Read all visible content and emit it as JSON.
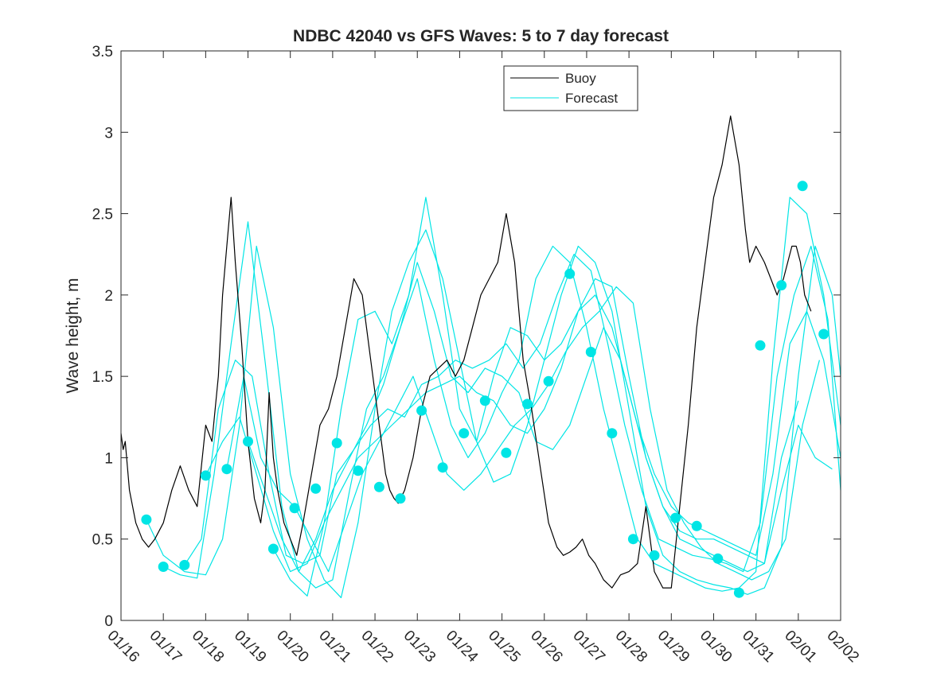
{
  "chart_data": {
    "type": "line",
    "title": "NDBC 42040 vs GFS Waves: 5 to 7 day forecast",
    "xlabel": "",
    "ylabel": "Wave height, m",
    "xlim": [
      0,
      17
    ],
    "ylim": [
      0,
      3.5
    ],
    "x_tick_values": [
      0,
      1,
      2,
      3,
      4,
      5,
      6,
      7,
      8,
      9,
      10,
      11,
      12,
      13,
      14,
      15,
      16,
      17
    ],
    "x_tick_labels": [
      "01/16",
      "01/17",
      "01/18",
      "01/19",
      "01/20",
      "01/21",
      "01/22",
      "01/23",
      "01/24",
      "01/25",
      "01/26",
      "01/27",
      "01/28",
      "01/29",
      "01/30",
      "01/31",
      "02/01",
      "02/02"
    ],
    "y_ticks": [
      0,
      0.5,
      1,
      1.5,
      2,
      2.5,
      3,
      3.5
    ],
    "y_tick_labels": [
      "0",
      "0.5",
      "1",
      "1.5",
      "2",
      "2.5",
      "3",
      "3.5"
    ],
    "legend": {
      "position": "top-right",
      "entries": [
        "Buoy",
        "Forecast"
      ]
    },
    "colors": {
      "buoy": "#000000",
      "forecast": "#00e5e5",
      "axis": "#262626"
    },
    "series": [
      {
        "name": "Buoy",
        "x": [
          0,
          0.05,
          0.1,
          0.2,
          0.35,
          0.5,
          0.65,
          0.8,
          1.0,
          1.2,
          1.4,
          1.6,
          1.8,
          2.0,
          2.15,
          2.3,
          2.4,
          2.5,
          2.6,
          2.7,
          2.85,
          3.0,
          3.15,
          3.3,
          3.4,
          3.5,
          3.6,
          3.7,
          3.85,
          4.0,
          4.15,
          4.3,
          4.5,
          4.7,
          4.9,
          5.1,
          5.3,
          5.5,
          5.7,
          5.9,
          6.1,
          6.25,
          6.35,
          6.45,
          6.55,
          6.7,
          6.9,
          7.1,
          7.3,
          7.5,
          7.7,
          7.9,
          8.1,
          8.3,
          8.5,
          8.7,
          8.9,
          9.1,
          9.3,
          9.5,
          9.7,
          9.9,
          10.1,
          10.3,
          10.45,
          10.6,
          10.75,
          10.9,
          11.05,
          11.2,
          11.4,
          11.6,
          11.8,
          12.0,
          12.2,
          12.4,
          12.6,
          12.8,
          13.0,
          13.2,
          13.4,
          13.6,
          13.8,
          14.0,
          14.2,
          14.4,
          14.6,
          14.75,
          14.85,
          15.0,
          15.2,
          15.35,
          15.5,
          15.65,
          15.75,
          15.85,
          15.95,
          16.05,
          16.15,
          16.3
        ],
        "values": [
          1.15,
          1.05,
          1.1,
          0.8,
          0.6,
          0.5,
          0.45,
          0.5,
          0.6,
          0.8,
          0.95,
          0.8,
          0.7,
          1.2,
          1.1,
          1.5,
          2.0,
          2.3,
          2.6,
          2.2,
          1.7,
          1.1,
          0.75,
          0.6,
          0.8,
          1.4,
          1.0,
          0.8,
          0.6,
          0.5,
          0.4,
          0.6,
          0.9,
          1.2,
          1.3,
          1.5,
          1.8,
          2.1,
          2.0,
          1.6,
          1.2,
          0.9,
          0.8,
          0.75,
          0.72,
          0.8,
          1.0,
          1.3,
          1.5,
          1.55,
          1.6,
          1.5,
          1.6,
          1.8,
          2.0,
          2.1,
          2.2,
          2.5,
          2.2,
          1.6,
          1.3,
          0.95,
          0.6,
          0.45,
          0.4,
          0.42,
          0.45,
          0.5,
          0.4,
          0.35,
          0.25,
          0.2,
          0.28,
          0.3,
          0.35,
          0.7,
          0.3,
          0.2,
          0.2,
          0.7,
          1.2,
          1.8,
          2.2,
          2.6,
          2.8,
          3.1,
          2.8,
          2.4,
          2.2,
          2.3,
          2.2,
          2.1,
          2.0,
          2.1,
          2.2,
          2.3,
          2.3,
          2.2,
          2.0,
          1.9
        ],
        "color": "#000000"
      },
      {
        "name": "Forecast",
        "x": [
          0.6,
          1.0,
          1.5,
          2.0,
          2.5,
          3.0,
          3.6,
          4.1,
          4.6,
          5.1,
          5.6,
          6.1,
          6.6,
          7.1,
          7.6,
          8.1,
          8.6,
          9.1,
          9.6,
          10.1,
          10.6,
          11.1,
          11.6,
          12.1,
          12.6,
          13.1,
          13.6,
          14.1,
          14.6,
          15.1,
          15.6,
          16.1,
          16.6
        ],
        "values": [
          0.62,
          0.33,
          0.34,
          0.89,
          0.93,
          1.1,
          0.44,
          0.69,
          0.81,
          1.09,
          0.92,
          0.82,
          0.75,
          1.29,
          0.94,
          1.15,
          1.35,
          1.03,
          1.33,
          1.47,
          2.13,
          1.65,
          1.15,
          0.5,
          0.4,
          0.63,
          0.58,
          0.38,
          0.17,
          1.69,
          2.06,
          2.67,
          1.76
        ],
        "style": "markers",
        "color": "#00e5e5"
      },
      {
        "name": "Forecast",
        "x": [
          0.6,
          1.0,
          1.5,
          2.0,
          2.4,
          2.8,
          3.2,
          3.6,
          4.0,
          4.4,
          4.8,
          5.2,
          5.6,
          6.0,
          6.4,
          6.8,
          7.2,
          7.6,
          8.0,
          8.4,
          8.8,
          9.2,
          9.6,
          10.0,
          10.4,
          10.8,
          11.2,
          11.6,
          12.0,
          12.4,
          12.8,
          13.2,
          13.6,
          14.0,
          14.4,
          14.8,
          15.2,
          15.6,
          16.0,
          16.4,
          16.8,
          17.0
        ],
        "values": [
          0.62,
          0.4,
          0.3,
          0.28,
          0.5,
          1.2,
          2.3,
          1.8,
          0.9,
          0.5,
          0.25,
          0.14,
          0.6,
          1.3,
          1.9,
          2.2,
          2.4,
          2.1,
          1.6,
          1.1,
          0.85,
          0.9,
          1.2,
          1.6,
          2.0,
          2.3,
          2.2,
          1.9,
          1.3,
          0.7,
          0.4,
          0.3,
          0.25,
          0.22,
          0.2,
          0.16,
          0.2,
          0.45,
          1.5,
          2.3,
          2.0,
          1.5
        ],
        "style": "line",
        "color": "#00e5e5"
      },
      {
        "name": "Forecast",
        "x": [
          1.0,
          1.4,
          1.8,
          2.2,
          2.6,
          3.0,
          3.4,
          3.8,
          4.2,
          4.6,
          5.0,
          5.4,
          5.8,
          6.2,
          6.6,
          7.0,
          7.4,
          7.8,
          8.2,
          8.6,
          9.0,
          9.4,
          9.8,
          10.2,
          10.6,
          11.0,
          11.4,
          11.8,
          12.2,
          12.6,
          13.0,
          13.4,
          13.8,
          14.2,
          14.6,
          15.0,
          15.4,
          15.8,
          16.2,
          16.6,
          17.0
        ],
        "values": [
          0.33,
          0.28,
          0.26,
          0.9,
          1.7,
          2.45,
          1.6,
          0.7,
          0.3,
          0.2,
          0.25,
          0.8,
          1.3,
          1.5,
          1.8,
          2.1,
          1.6,
          1.2,
          1.0,
          1.15,
          1.4,
          1.6,
          2.1,
          2.3,
          2.2,
          1.8,
          1.3,
          0.9,
          0.5,
          0.35,
          0.3,
          0.25,
          0.2,
          0.18,
          0.2,
          0.3,
          1.6,
          2.6,
          2.5,
          2.0,
          1.2
        ],
        "style": "line",
        "color": "#00e5e5"
      },
      {
        "name": "Forecast",
        "x": [
          1.5,
          1.9,
          2.3,
          2.7,
          3.1,
          3.5,
          3.9,
          4.3,
          4.7,
          5.1,
          5.5,
          5.9,
          6.3,
          6.7,
          7.1,
          7.5,
          7.9,
          8.3,
          8.7,
          9.1,
          9.5,
          9.9,
          10.3,
          10.7,
          11.1,
          11.5,
          11.9,
          12.3,
          12.7,
          13.1,
          13.5,
          13.9,
          14.3,
          14.7,
          15.1,
          15.5,
          15.9,
          16.3,
          16.7,
          17.0
        ],
        "values": [
          0.34,
          0.5,
          1.3,
          1.6,
          1.5,
          0.9,
          0.4,
          0.35,
          0.4,
          0.9,
          1.05,
          1.2,
          1.3,
          1.25,
          1.45,
          1.5,
          1.6,
          1.55,
          1.6,
          1.7,
          1.55,
          1.7,
          2.0,
          2.25,
          2.15,
          1.7,
          1.2,
          0.8,
          0.5,
          0.45,
          0.4,
          0.38,
          0.35,
          0.3,
          0.6,
          1.5,
          2.0,
          2.3,
          1.85,
          0.8
        ],
        "style": "line",
        "color": "#00e5e5"
      },
      {
        "name": "Forecast",
        "x": [
          2.0,
          2.4,
          2.8,
          3.2,
          3.6,
          4.0,
          4.4,
          4.8,
          5.2,
          5.6,
          6.0,
          6.4,
          6.8,
          7.2,
          7.6,
          8.0,
          8.4,
          8.8,
          9.2,
          9.6,
          10.0,
          10.4,
          10.8,
          11.2,
          11.6,
          12.0,
          12.4,
          12.8,
          13.2,
          13.6,
          14.0,
          14.4,
          14.8,
          15.2,
          15.6,
          16.0
        ],
        "values": [
          0.89,
          1.1,
          1.25,
          0.9,
          0.55,
          0.3,
          0.35,
          0.6,
          0.8,
          1.0,
          1.1,
          1.2,
          1.3,
          1.4,
          1.45,
          1.5,
          1.4,
          1.35,
          1.2,
          1.15,
          1.3,
          1.55,
          1.9,
          2.0,
          1.8,
          1.4,
          1.0,
          0.7,
          0.55,
          0.5,
          0.5,
          0.45,
          0.4,
          0.35,
          1.0,
          1.35
        ],
        "style": "line",
        "color": "#00e5e5"
      },
      {
        "name": "Forecast",
        "x": [
          2.5,
          2.9,
          3.3,
          3.7,
          4.1,
          4.5,
          4.9,
          5.3,
          5.7,
          6.1,
          6.5,
          6.9,
          7.3,
          7.7,
          8.1,
          8.5,
          8.9,
          9.3,
          9.7,
          10.1,
          10.5,
          10.9,
          11.3,
          11.7,
          12.1,
          12.5,
          12.9,
          13.3,
          13.7,
          14.1,
          14.5,
          14.9,
          15.3,
          15.7,
          16.1,
          16.5
        ],
        "values": [
          0.93,
          1.5,
          1.0,
          0.8,
          0.7,
          0.5,
          0.3,
          0.6,
          0.9,
          1.1,
          1.3,
          1.5,
          1.2,
          0.9,
          0.8,
          0.9,
          1.05,
          1.2,
          1.3,
          1.45,
          1.65,
          1.8,
          1.9,
          2.05,
          1.95,
          1.3,
          0.8,
          0.6,
          0.45,
          0.35,
          0.3,
          0.25,
          0.3,
          0.5,
          1.2,
          1.6
        ],
        "style": "line",
        "color": "#00e5e5"
      },
      {
        "name": "Forecast",
        "x": [
          3.0,
          3.4,
          3.8,
          4.2,
          4.6,
          5.0,
          5.4,
          5.8,
          6.2,
          6.6,
          7.0,
          7.4,
          7.8,
          8.2,
          8.6,
          9.0,
          9.4,
          9.8,
          10.2,
          10.6,
          11.0,
          11.4,
          11.8,
          12.2,
          12.6,
          13.0,
          13.4,
          13.8,
          14.2,
          14.6,
          15.0,
          15.4,
          15.8,
          16.2,
          16.6,
          17.0
        ],
        "values": [
          1.1,
          0.8,
          0.5,
          0.3,
          0.5,
          0.8,
          1.0,
          1.2,
          1.45,
          1.8,
          2.2,
          1.9,
          1.5,
          1.4,
          1.55,
          1.5,
          1.4,
          1.1,
          1.05,
          1.2,
          1.5,
          1.8,
          1.6,
          1.2,
          0.9,
          0.7,
          0.6,
          0.55,
          0.5,
          0.45,
          0.4,
          0.9,
          1.7,
          1.9,
          1.6,
          1.0
        ],
        "style": "line",
        "color": "#00e5e5"
      },
      {
        "name": "Forecast",
        "x": [
          3.6,
          4.0,
          4.4,
          4.8,
          5.2,
          5.6,
          6.0,
          6.4,
          6.8,
          7.2,
          7.6,
          8.0,
          8.4,
          8.8,
          9.2,
          9.6,
          10.0,
          10.4,
          10.8,
          11.2,
          11.6,
          12.0,
          12.4,
          12.8,
          13.2,
          13.6,
          14.0,
          14.4,
          14.8,
          15.2,
          15.6,
          16.0,
          16.4,
          16.8
        ],
        "values": [
          0.44,
          0.25,
          0.15,
          0.6,
          1.3,
          1.85,
          1.9,
          1.7,
          2.0,
          2.6,
          2.0,
          1.3,
          1.1,
          1.5,
          1.8,
          1.75,
          1.6,
          1.7,
          1.9,
          2.1,
          2.05,
          1.5,
          1.0,
          0.7,
          0.5,
          0.45,
          0.4,
          0.35,
          0.3,
          0.35,
          0.8,
          1.2,
          1.0,
          0.93
        ],
        "style": "line",
        "color": "#00e5e5"
      }
    ]
  }
}
